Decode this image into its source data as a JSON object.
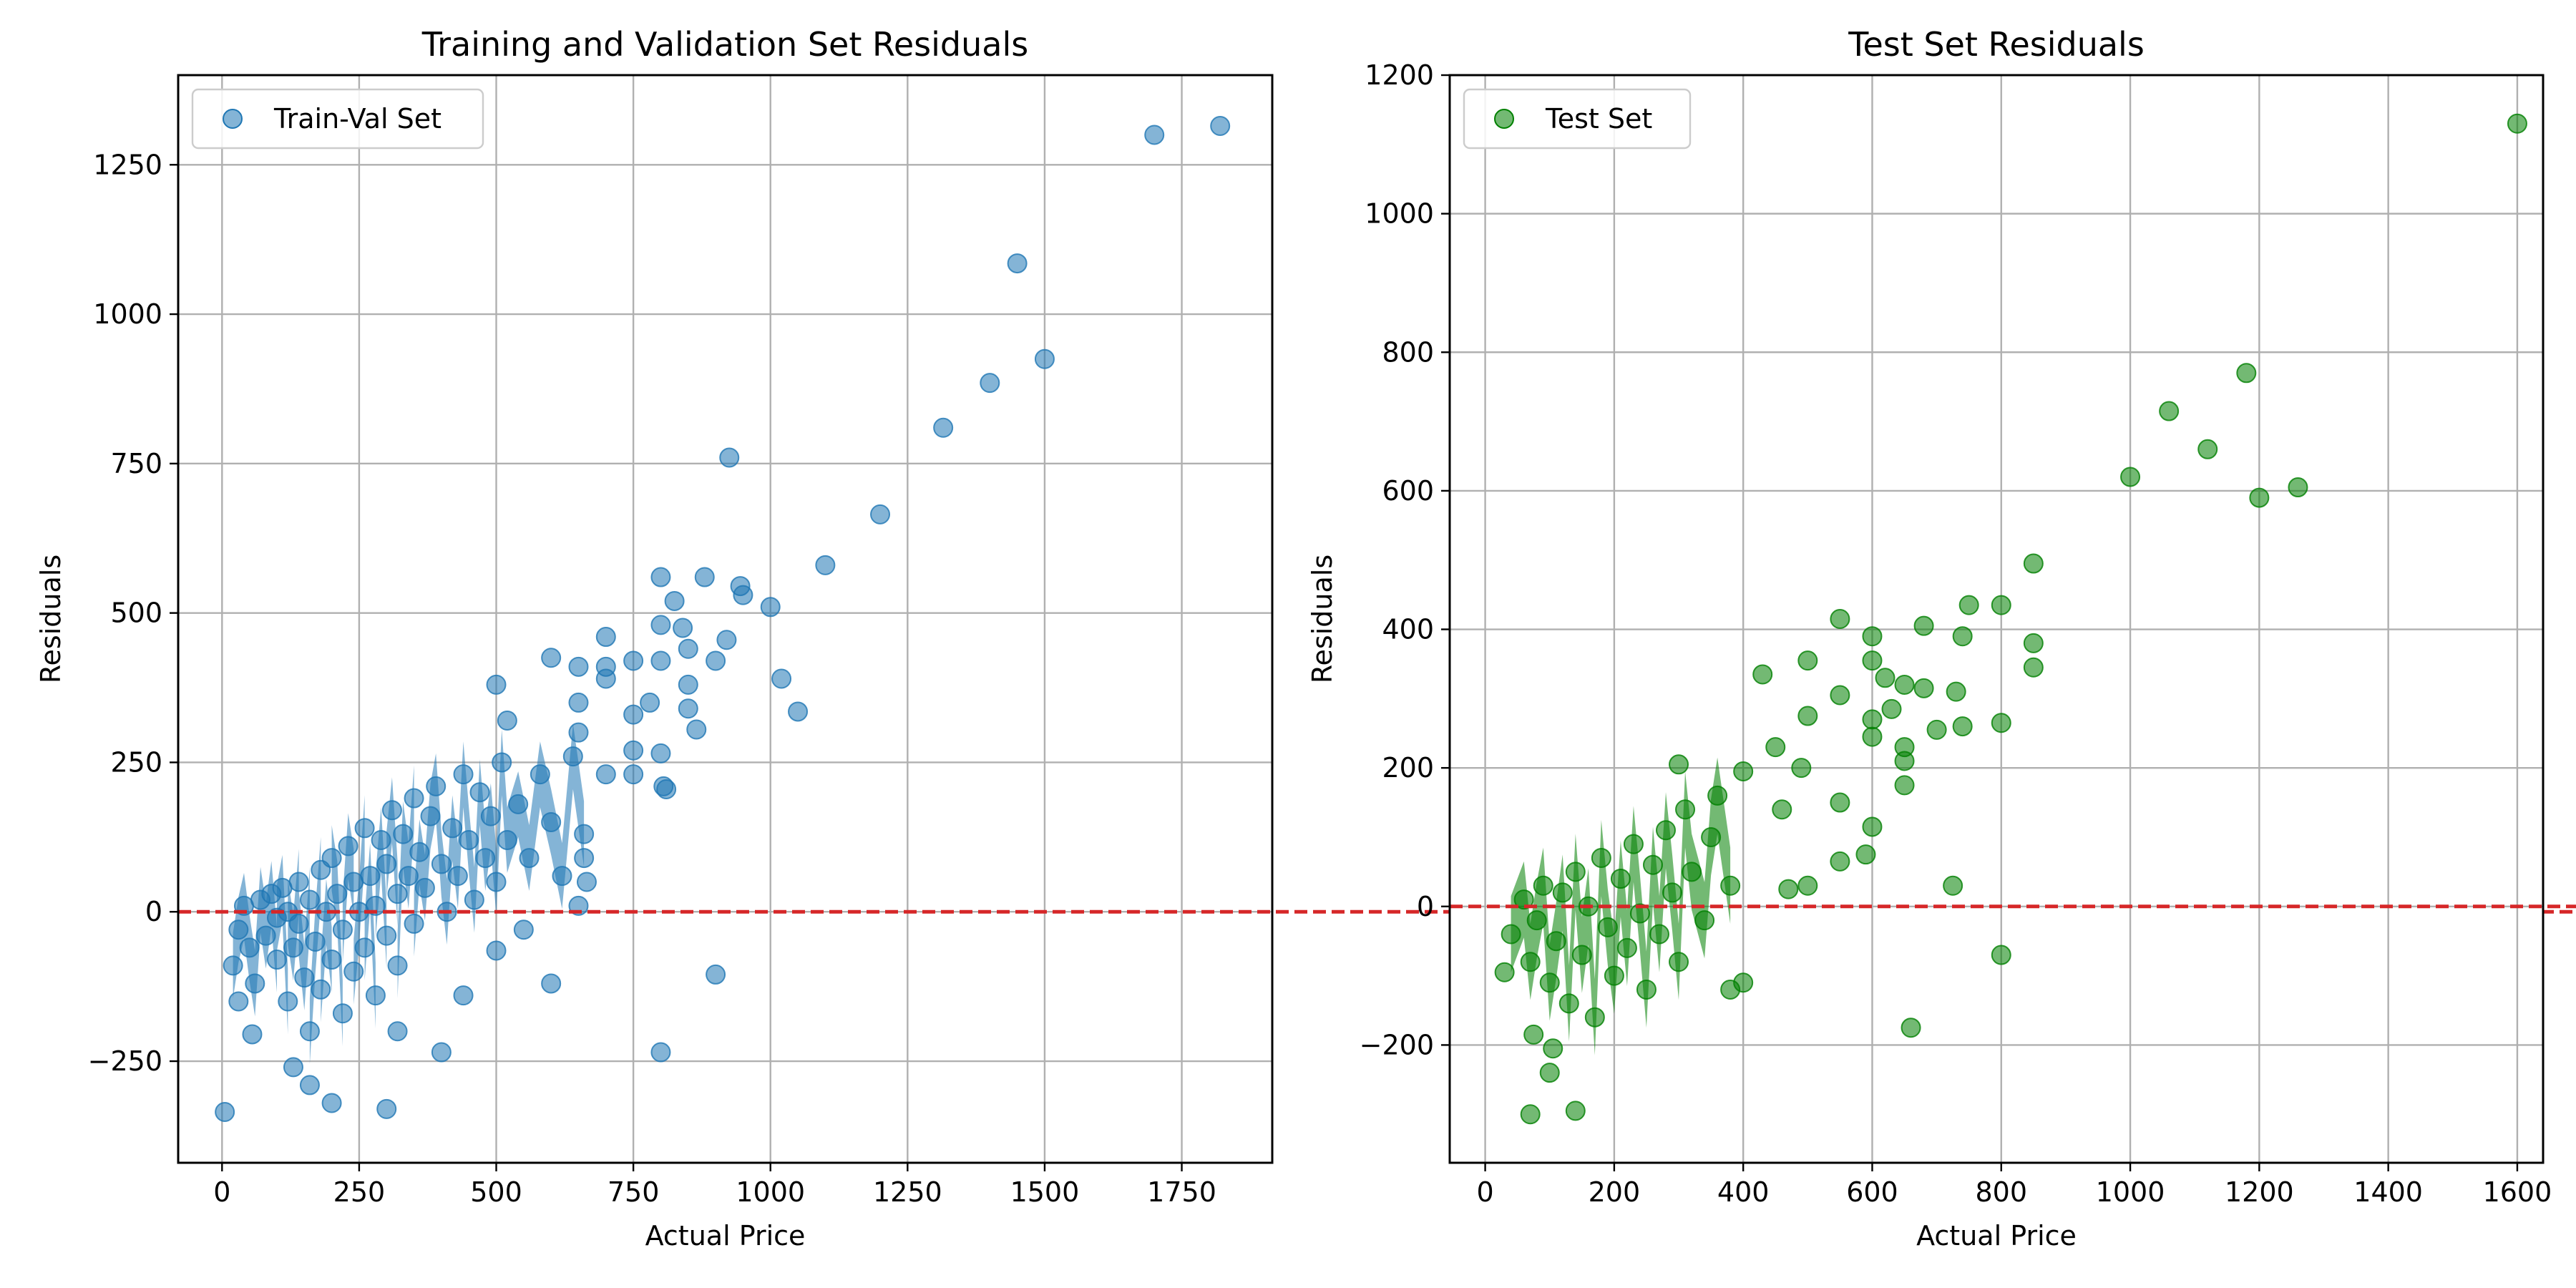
{
  "chart_data": [
    {
      "type": "scatter",
      "title": "Training and Validation Set Residuals",
      "xlabel": "Actual Price",
      "ylabel": "Residuals",
      "xlim": [
        -80,
        1915
      ],
      "ylim": [
        -420,
        1400
      ],
      "xticks": [
        0,
        250,
        500,
        750,
        1000,
        1250,
        1500,
        1750
      ],
      "yticks": [
        -250,
        0,
        250,
        500,
        750,
        1000,
        1250
      ],
      "grid": true,
      "legend_position": "top-left",
      "reference_line": {
        "y": 0,
        "color": "#d62728",
        "style": "dashed"
      },
      "series": [
        {
          "name": "Train-Val Set",
          "color": "#1f77b4",
          "cluster": [
            {
              "x": 20,
              "y": -90
            },
            {
              "x": 30,
              "y": -30
            },
            {
              "x": 40,
              "y": 10
            },
            {
              "x": 50,
              "y": -60
            },
            {
              "x": 60,
              "y": -120
            },
            {
              "x": 70,
              "y": 20
            },
            {
              "x": 80,
              "y": -40
            },
            {
              "x": 90,
              "y": 30
            },
            {
              "x": 100,
              "y": -80
            },
            {
              "x": 100,
              "y": -10
            },
            {
              "x": 110,
              "y": 40
            },
            {
              "x": 120,
              "y": -150
            },
            {
              "x": 120,
              "y": 0
            },
            {
              "x": 130,
              "y": -60
            },
            {
              "x": 140,
              "y": 50
            },
            {
              "x": 140,
              "y": -20
            },
            {
              "x": 150,
              "y": -110
            },
            {
              "x": 160,
              "y": 20
            },
            {
              "x": 160,
              "y": -200
            },
            {
              "x": 170,
              "y": -50
            },
            {
              "x": 180,
              "y": 70
            },
            {
              "x": 180,
              "y": -130
            },
            {
              "x": 190,
              "y": 0
            },
            {
              "x": 200,
              "y": -80
            },
            {
              "x": 200,
              "y": 90
            },
            {
              "x": 210,
              "y": 30
            },
            {
              "x": 220,
              "y": -170
            },
            {
              "x": 220,
              "y": -30
            },
            {
              "x": 230,
              "y": 110
            },
            {
              "x": 240,
              "y": 50
            },
            {
              "x": 240,
              "y": -100
            },
            {
              "x": 250,
              "y": 0
            },
            {
              "x": 260,
              "y": 140
            },
            {
              "x": 260,
              "y": -60
            },
            {
              "x": 270,
              "y": 60
            },
            {
              "x": 280,
              "y": -140
            },
            {
              "x": 280,
              "y": 10
            },
            {
              "x": 290,
              "y": 120
            },
            {
              "x": 300,
              "y": -40
            },
            {
              "x": 300,
              "y": 80
            },
            {
              "x": 310,
              "y": 170
            },
            {
              "x": 320,
              "y": 30
            },
            {
              "x": 320,
              "y": -90
            },
            {
              "x": 330,
              "y": 130
            },
            {
              "x": 340,
              "y": 60
            },
            {
              "x": 350,
              "y": 190
            },
            {
              "x": 350,
              "y": -20
            },
            {
              "x": 360,
              "y": 100
            },
            {
              "x": 370,
              "y": 40
            },
            {
              "x": 380,
              "y": 160
            },
            {
              "x": 390,
              "y": 210
            },
            {
              "x": 400,
              "y": 80
            },
            {
              "x": 410,
              "y": 0
            },
            {
              "x": 420,
              "y": 140
            },
            {
              "x": 430,
              "y": 60
            },
            {
              "x": 440,
              "y": 230
            },
            {
              "x": 450,
              "y": 120
            },
            {
              "x": 460,
              "y": 20
            },
            {
              "x": 470,
              "y": 200
            },
            {
              "x": 480,
              "y": 90
            },
            {
              "x": 490,
              "y": 160
            },
            {
              "x": 500,
              "y": 50
            },
            {
              "x": 510,
              "y": 250
            },
            {
              "x": 520,
              "y": 120
            },
            {
              "x": 540,
              "y": 180
            },
            {
              "x": 560,
              "y": 90
            },
            {
              "x": 580,
              "y": 230
            },
            {
              "x": 600,
              "y": 150
            },
            {
              "x": 620,
              "y": 60
            },
            {
              "x": 640,
              "y": 260
            },
            {
              "x": 660,
              "y": 130
            }
          ],
          "points": [
            {
              "x": 5,
              "y": -335
            },
            {
              "x": 30,
              "y": -150
            },
            {
              "x": 55,
              "y": -205
            },
            {
              "x": 130,
              "y": -260
            },
            {
              "x": 160,
              "y": -290
            },
            {
              "x": 200,
              "y": -320
            },
            {
              "x": 300,
              "y": -330
            },
            {
              "x": 320,
              "y": -200
            },
            {
              "x": 400,
              "y": -235
            },
            {
              "x": 440,
              "y": -140
            },
            {
              "x": 500,
              "y": -65
            },
            {
              "x": 550,
              "y": -30
            },
            {
              "x": 600,
              "y": -120
            },
            {
              "x": 650,
              "y": 10
            },
            {
              "x": 665,
              "y": 50
            },
            {
              "x": 660,
              "y": 90
            },
            {
              "x": 500,
              "y": 380
            },
            {
              "x": 520,
              "y": 320
            },
            {
              "x": 600,
              "y": 425
            },
            {
              "x": 650,
              "y": 410
            },
            {
              "x": 650,
              "y": 350
            },
            {
              "x": 650,
              "y": 300
            },
            {
              "x": 700,
              "y": 460
            },
            {
              "x": 700,
              "y": 410
            },
            {
              "x": 700,
              "y": 390
            },
            {
              "x": 700,
              "y": 230
            },
            {
              "x": 750,
              "y": 420
            },
            {
              "x": 750,
              "y": 330
            },
            {
              "x": 750,
              "y": 270
            },
            {
              "x": 750,
              "y": 230
            },
            {
              "x": 780,
              "y": 350
            },
            {
              "x": 800,
              "y": 560
            },
            {
              "x": 800,
              "y": 480
            },
            {
              "x": 800,
              "y": 420
            },
            {
              "x": 800,
              "y": 265
            },
            {
              "x": 805,
              "y": 210
            },
            {
              "x": 810,
              "y": 205
            },
            {
              "x": 825,
              "y": 520
            },
            {
              "x": 840,
              "y": 475
            },
            {
              "x": 850,
              "y": 440
            },
            {
              "x": 850,
              "y": 380
            },
            {
              "x": 850,
              "y": 340
            },
            {
              "x": 865,
              "y": 305
            },
            {
              "x": 880,
              "y": 560
            },
            {
              "x": 900,
              "y": 420
            },
            {
              "x": 925,
              "y": 760
            },
            {
              "x": 920,
              "y": 455
            },
            {
              "x": 945,
              "y": 545
            },
            {
              "x": 950,
              "y": 530
            },
            {
              "x": 1000,
              "y": 510
            },
            {
              "x": 1020,
              "y": 390
            },
            {
              "x": 1050,
              "y": 335
            },
            {
              "x": 1100,
              "y": 580
            },
            {
              "x": 1200,
              "y": 665
            },
            {
              "x": 1315,
              "y": 810
            },
            {
              "x": 1400,
              "y": 885
            },
            {
              "x": 1450,
              "y": 1085
            },
            {
              "x": 1500,
              "y": 925
            },
            {
              "x": 1700,
              "y": 1300
            },
            {
              "x": 1820,
              "y": 1315
            },
            {
              "x": 800,
              "y": -235
            },
            {
              "x": 900,
              "y": -105
            }
          ]
        }
      ]
    },
    {
      "type": "scatter",
      "title": "Test Set Residuals",
      "xlabel": "Actual Price",
      "ylabel": "Residuals",
      "xlim": [
        -55,
        1640
      ],
      "ylim": [
        -370,
        1200
      ],
      "xticks": [
        0,
        200,
        400,
        600,
        800,
        1000,
        1200,
        1400,
        1600
      ],
      "yticks": [
        -200,
        0,
        200,
        400,
        600,
        800,
        1000,
        1200
      ],
      "grid": true,
      "legend_position": "top-left",
      "reference_line": {
        "y": 0,
        "color": "#d62728",
        "style": "dashed"
      },
      "series": [
        {
          "name": "Test Set",
          "color": "#008000",
          "cluster": [
            {
              "x": 40,
              "y": -40
            },
            {
              "x": 60,
              "y": 10
            },
            {
              "x": 70,
              "y": -80
            },
            {
              "x": 80,
              "y": -20
            },
            {
              "x": 90,
              "y": 30
            },
            {
              "x": 100,
              "y": -110
            },
            {
              "x": 110,
              "y": -50
            },
            {
              "x": 120,
              "y": 20
            },
            {
              "x": 130,
              "y": -140
            },
            {
              "x": 140,
              "y": 50
            },
            {
              "x": 150,
              "y": -70
            },
            {
              "x": 160,
              "y": 0
            },
            {
              "x": 170,
              "y": -160
            },
            {
              "x": 180,
              "y": 70
            },
            {
              "x": 190,
              "y": -30
            },
            {
              "x": 200,
              "y": -100
            },
            {
              "x": 210,
              "y": 40
            },
            {
              "x": 220,
              "y": -60
            },
            {
              "x": 230,
              "y": 90
            },
            {
              "x": 240,
              "y": -10
            },
            {
              "x": 250,
              "y": -120
            },
            {
              "x": 260,
              "y": 60
            },
            {
              "x": 270,
              "y": -40
            },
            {
              "x": 280,
              "y": 110
            },
            {
              "x": 290,
              "y": 20
            },
            {
              "x": 300,
              "y": -80
            },
            {
              "x": 310,
              "y": 140
            },
            {
              "x": 320,
              "y": 50
            },
            {
              "x": 340,
              "y": -20
            },
            {
              "x": 350,
              "y": 100
            },
            {
              "x": 360,
              "y": 160
            },
            {
              "x": 380,
              "y": 30
            }
          ],
          "points": [
            {
              "x": 70,
              "y": -300
            },
            {
              "x": 100,
              "y": -240
            },
            {
              "x": 140,
              "y": -295
            },
            {
              "x": 105,
              "y": -205
            },
            {
              "x": 75,
              "y": -185
            },
            {
              "x": 30,
              "y": -95
            },
            {
              "x": 300,
              "y": 205
            },
            {
              "x": 380,
              "y": -120
            },
            {
              "x": 400,
              "y": -110
            },
            {
              "x": 400,
              "y": 195
            },
            {
              "x": 430,
              "y": 335
            },
            {
              "x": 450,
              "y": 230
            },
            {
              "x": 460,
              "y": 140
            },
            {
              "x": 470,
              "y": 25
            },
            {
              "x": 490,
              "y": 200
            },
            {
              "x": 500,
              "y": 355
            },
            {
              "x": 500,
              "y": 275
            },
            {
              "x": 500,
              "y": 30
            },
            {
              "x": 550,
              "y": 415
            },
            {
              "x": 550,
              "y": 305
            },
            {
              "x": 550,
              "y": 150
            },
            {
              "x": 550,
              "y": 65
            },
            {
              "x": 590,
              "y": 75
            },
            {
              "x": 600,
              "y": 390
            },
            {
              "x": 600,
              "y": 355
            },
            {
              "x": 600,
              "y": 270
            },
            {
              "x": 600,
              "y": 245
            },
            {
              "x": 600,
              "y": 115
            },
            {
              "x": 620,
              "y": 330
            },
            {
              "x": 630,
              "y": 285
            },
            {
              "x": 650,
              "y": 320
            },
            {
              "x": 650,
              "y": 230
            },
            {
              "x": 650,
              "y": 210
            },
            {
              "x": 650,
              "y": 175
            },
            {
              "x": 660,
              "y": -175
            },
            {
              "x": 680,
              "y": 405
            },
            {
              "x": 680,
              "y": 315
            },
            {
              "x": 700,
              "y": 255
            },
            {
              "x": 725,
              "y": 30
            },
            {
              "x": 730,
              "y": 310
            },
            {
              "x": 740,
              "y": 390
            },
            {
              "x": 740,
              "y": 260
            },
            {
              "x": 750,
              "y": 435
            },
            {
              "x": 800,
              "y": 435
            },
            {
              "x": 800,
              "y": 265
            },
            {
              "x": 800,
              "y": -70
            },
            {
              "x": 850,
              "y": 495
            },
            {
              "x": 850,
              "y": 380
            },
            {
              "x": 850,
              "y": 345
            },
            {
              "x": 1000,
              "y": 620
            },
            {
              "x": 1060,
              "y": 715
            },
            {
              "x": 1120,
              "y": 660
            },
            {
              "x": 1180,
              "y": 770
            },
            {
              "x": 1200,
              "y": 590
            },
            {
              "x": 1260,
              "y": 605
            },
            {
              "x": 1600,
              "y": 1130
            }
          ]
        }
      ]
    }
  ]
}
